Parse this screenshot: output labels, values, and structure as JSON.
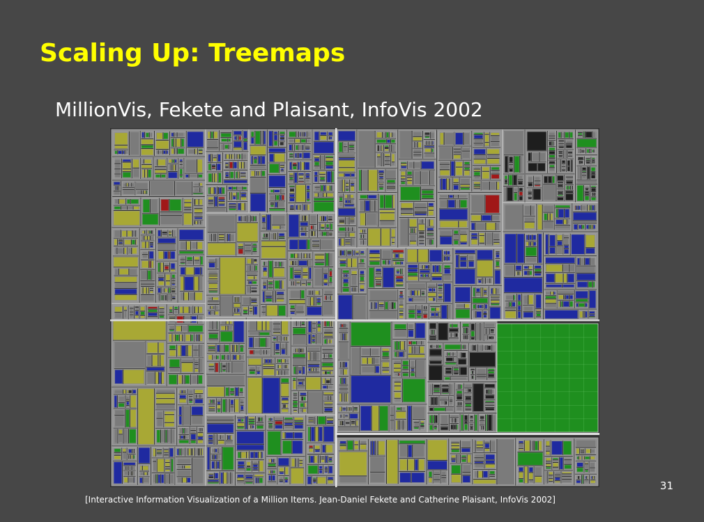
{
  "slide": {
    "title": "Scaling Up: Treemaps",
    "subtitle": "MillionVis, Fekete and Plaisant, InfoVis 2002",
    "page_number": "31",
    "citation": "[Interactive Information Visualization of a Million Items. Jean-Daniel Fekete and Catherine Plaisant, InfoVis 2002]"
  },
  "figure": {
    "colors": {
      "gray": "#7b7b7b",
      "dark": "#1e1e1e",
      "yellow": "#a8a835",
      "green": "#1f8f1f",
      "blue": "#1f2aa0",
      "red": "#a01818",
      "border": "#d7d7d7"
    }
  }
}
